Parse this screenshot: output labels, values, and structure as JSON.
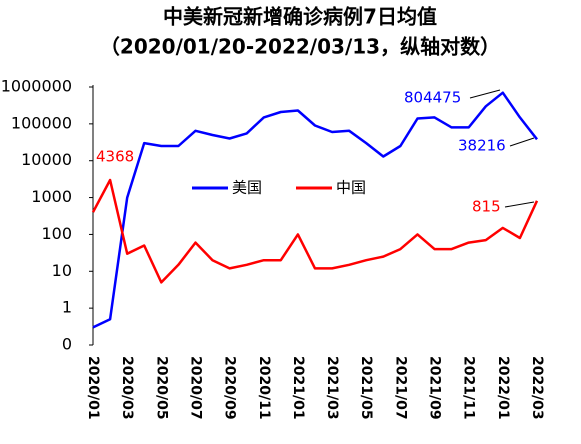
{
  "chart_data": {
    "type": "line",
    "title": "中美新冠新增确诊病例7日均值",
    "subtitle": "（2020/01/20-2022/03/13，纵轴对数）",
    "categories": [
      "2020/01",
      null,
      "2020/03",
      null,
      "2020/05",
      null,
      "2020/07",
      null,
      "2020/09",
      null,
      "2020/11",
      null,
      "2021/01",
      null,
      "2021/03",
      null,
      "2021/05",
      null,
      "2021/07",
      null,
      "2021/09",
      null,
      "2021/11",
      null,
      "2022/01",
      null,
      "2022/03"
    ],
    "series": [
      {
        "name": "美国",
        "color": "#0000ff",
        "values": [
          0.3,
          0.5,
          1000,
          30000,
          25000,
          25000,
          65000,
          50000,
          40000,
          55000,
          150000,
          210000,
          230000,
          90000,
          60000,
          65000,
          30000,
          13000,
          25000,
          140000,
          150000,
          80000,
          80000,
          300000,
          700000,
          150000,
          38216
        ]
      },
      {
        "name": "中国",
        "color": "#ff0000",
        "values": [
          400,
          3000,
          30,
          50,
          5,
          15,
          60,
          20,
          12,
          15,
          20,
          20,
          100,
          12,
          12,
          15,
          20,
          25,
          40,
          100,
          40,
          40,
          60,
          70,
          150,
          80,
          815
        ]
      }
    ],
    "log": true,
    "ylim": [
      0.1,
      1000000
    ],
    "yticks": [
      {
        "value": 0.1,
        "label": "0"
      },
      1,
      10,
      100,
      1000,
      10000,
      100000,
      1000000
    ],
    "annotations": [
      {
        "text": "4368",
        "color": "#ff0000"
      },
      {
        "text": "804475",
        "color": "#0000ff"
      },
      {
        "text": "38216",
        "color": "#0000ff"
      },
      {
        "text": "815",
        "color": "#ff0000"
      }
    ],
    "legend": "center"
  }
}
